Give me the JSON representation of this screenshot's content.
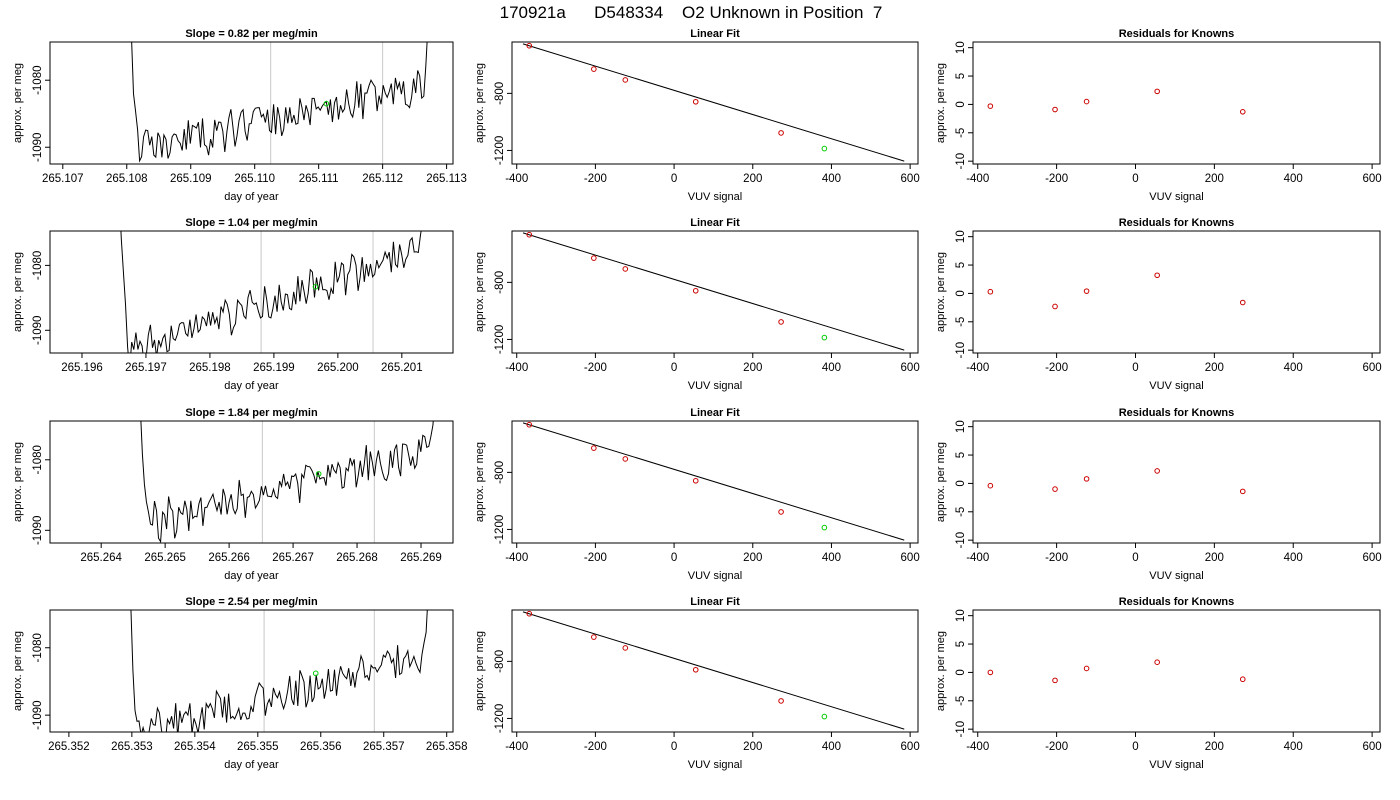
{
  "page": {
    "title": "170921a      D548334    O2 Unknown in Position  7"
  },
  "colors": {
    "trace": "#000000",
    "vline": "#c8c8c8",
    "unknown_point": "#00cc00",
    "known_point": "#cc0000",
    "axis": "#000000"
  },
  "chart_data": [
    {
      "type": "line",
      "row": 0,
      "col": 0,
      "title": "Slope =  0.82  per meg/min",
      "xlabel": "day of year",
      "ylabel": "approx. per meg",
      "xlim": [
        265.1068,
        265.1131
      ],
      "ylim": [
        -1092.5,
        -1074.3
      ],
      "xticks": [
        265.107,
        265.108,
        265.109,
        265.11,
        265.111,
        265.112,
        265.113
      ],
      "xtick_labels": [
        "265.107",
        "265.108",
        "265.109",
        "265.110",
        "265.111",
        "265.112",
        "265.113"
      ],
      "yticks": [
        -1080,
        -1090
      ],
      "ytick_labels": [
        "-1080",
        "-1090"
      ],
      "trace": {
        "x_start": 265.10801,
        "x_end": 265.11277,
        "baseline_start": -1091,
        "baseline_end": -1080.5,
        "noise": 1.6,
        "seed": 11,
        "spike_left_to": -1060,
        "spike_right_to": -1060
      },
      "vlines": [
        265.11025,
        265.112
      ],
      "marker": {
        "x": 265.11112,
        "y": -1083.5
      }
    },
    {
      "type": "scatter",
      "row": 0,
      "col": 1,
      "title": "Linear Fit",
      "xlabel": "VUV signal",
      "ylabel": "approx. per meg",
      "xlim": [
        -412,
        620
      ],
      "ylim": [
        -1295,
        -440
      ],
      "xticks": [
        -400,
        -200,
        0,
        200,
        400,
        600
      ],
      "xtick_labels": [
        "-400",
        "-200",
        "0",
        "200",
        "400",
        "600"
      ],
      "yticks": [
        -800,
        -1200
      ],
      "ytick_labels": [
        "-800",
        "-1200"
      ],
      "fit_line": {
        "x": [
          -384,
          585
        ],
        "y": [
          -453,
          -1275
        ]
      },
      "knowns": {
        "x": [
          -368,
          -204,
          -124,
          55,
          272
        ],
        "y": [
          -466,
          -630,
          -706,
          -859,
          -1077
        ]
      },
      "unknown": {
        "x": 382,
        "y": -1187
      }
    },
    {
      "type": "scatter",
      "row": 0,
      "col": 2,
      "title": "Residuals for Knowns",
      "xlabel": "VUV signal",
      "ylabel": "approx. per meg",
      "xlim": [
        -412,
        620
      ],
      "ylim": [
        -10.5,
        11
      ],
      "xticks": [
        -400,
        -200,
        0,
        200,
        400,
        600
      ],
      "xtick_labels": [
        "-400",
        "-200",
        "0",
        "200",
        "400",
        "600"
      ],
      "yticks": [
        10,
        5,
        0,
        -5,
        -10
      ],
      "ytick_labels": [
        "10",
        "5",
        "0",
        "-5",
        "-10"
      ],
      "knowns": {
        "x": [
          -368,
          -204,
          -124,
          55,
          272
        ],
        "y": [
          -0.3,
          -0.9,
          0.5,
          2.3,
          -1.3
        ]
      }
    },
    {
      "type": "line",
      "row": 1,
      "col": 0,
      "title": "Slope =  1.04  per meg/min",
      "xlabel": "day of year",
      "ylabel": "approx. per meg",
      "xlim": [
        265.1955,
        265.2018
      ],
      "ylim": [
        -1093.5,
        -1074.7
      ],
      "xticks": [
        265.196,
        265.197,
        265.198,
        265.199,
        265.2,
        265.201
      ],
      "xtick_labels": [
        "265.196",
        "265.197",
        "265.198",
        "265.199",
        "265.200",
        "265.201"
      ],
      "yticks": [
        -1080,
        -1090
      ],
      "ytick_labels": [
        "-1080",
        "-1090"
      ],
      "trace": {
        "x_start": 265.19655,
        "x_end": 265.20142,
        "baseline_start": -1094,
        "baseline_end": -1077,
        "noise": 1.6,
        "seed": 23,
        "spike_left_to": -1060,
        "spike_right_to": -1060
      },
      "vlines": [
        265.1988,
        265.20055
      ],
      "marker": {
        "x": 265.19965,
        "y": -1083.3
      }
    },
    {
      "type": "scatter",
      "row": 1,
      "col": 1,
      "title": "Linear Fit",
      "xlabel": "VUV signal",
      "ylabel": "approx. per meg",
      "xlim": [
        -412,
        620
      ],
      "ylim": [
        -1295,
        -440
      ],
      "xticks": [
        -400,
        -200,
        0,
        200,
        400,
        600
      ],
      "xtick_labels": [
        "-400",
        "-200",
        "0",
        "200",
        "400",
        "600"
      ],
      "yticks": [
        -800,
        -1200
      ],
      "ytick_labels": [
        "-800",
        "-1200"
      ],
      "fit_line": {
        "x": [
          -384,
          585
        ],
        "y": [
          -453,
          -1275
        ]
      },
      "knowns": {
        "x": [
          -368,
          -204,
          -124,
          55,
          272
        ],
        "y": [
          -466,
          -630,
          -706,
          -859,
          -1077
        ]
      },
      "unknown": {
        "x": 382,
        "y": -1187
      }
    },
    {
      "type": "scatter",
      "row": 1,
      "col": 2,
      "title": "Residuals for Knowns",
      "xlabel": "VUV signal",
      "ylabel": "approx. per meg",
      "xlim": [
        -412,
        620
      ],
      "ylim": [
        -10.5,
        11
      ],
      "xticks": [
        -400,
        -200,
        0,
        200,
        400,
        600
      ],
      "xtick_labels": [
        "-400",
        "-200",
        "0",
        "200",
        "400",
        "600"
      ],
      "yticks": [
        10,
        5,
        0,
        -5,
        -10
      ],
      "ytick_labels": [
        "10",
        "5",
        "0",
        "-5",
        "-10"
      ],
      "knowns": {
        "x": [
          -368,
          -204,
          -124,
          55,
          272
        ],
        "y": [
          0.3,
          -2.3,
          0.4,
          3.2,
          -1.6
        ]
      }
    },
    {
      "type": "line",
      "row": 2,
      "col": 0,
      "title": "Slope =  1.84  per meg/min",
      "xlabel": "day of year",
      "ylabel": "approx. per meg",
      "xlim": [
        265.2632,
        265.2695
      ],
      "ylim": [
        -1091.8,
        -1074.5
      ],
      "xticks": [
        265.264,
        265.265,
        265.266,
        265.267,
        265.268,
        265.269
      ],
      "xtick_labels": [
        "265.264",
        "265.265",
        "265.266",
        "265.267",
        "265.268",
        "265.269"
      ],
      "yticks": [
        -1080,
        -1090
      ],
      "ytick_labels": [
        "-1080",
        "-1090"
      ],
      "trace": {
        "x_start": 265.26455,
        "x_end": 265.26928,
        "baseline_start": -1089.5,
        "baseline_end": -1078,
        "noise": 1.5,
        "seed": 37,
        "spike_left_to": -1060,
        "spike_right_to": -1060
      },
      "vlines": [
        265.26652,
        265.26827
      ],
      "marker": {
        "x": 265.2674,
        "y": -1082
      }
    },
    {
      "type": "scatter",
      "row": 2,
      "col": 1,
      "title": "Linear Fit",
      "xlabel": "VUV signal",
      "ylabel": "approx. per meg",
      "xlim": [
        -412,
        620
      ],
      "ylim": [
        -1295,
        -440
      ],
      "xticks": [
        -400,
        -200,
        0,
        200,
        400,
        600
      ],
      "xtick_labels": [
        "-400",
        "-200",
        "0",
        "200",
        "400",
        "600"
      ],
      "yticks": [
        -800,
        -1200
      ],
      "ytick_labels": [
        "-800",
        "-1200"
      ],
      "fit_line": {
        "x": [
          -384,
          585
        ],
        "y": [
          -453,
          -1275
        ]
      },
      "knowns": {
        "x": [
          -368,
          -204,
          -124,
          55,
          272
        ],
        "y": [
          -466,
          -630,
          -706,
          -859,
          -1077
        ]
      },
      "unknown": {
        "x": 382,
        "y": -1187
      }
    },
    {
      "type": "scatter",
      "row": 2,
      "col": 2,
      "title": "Residuals for Knowns",
      "xlabel": "VUV signal",
      "ylabel": "approx. per meg",
      "xlim": [
        -412,
        620
      ],
      "ylim": [
        -10.5,
        11
      ],
      "xticks": [
        -400,
        -200,
        0,
        200,
        400,
        600
      ],
      "xtick_labels": [
        "-400",
        "-200",
        "0",
        "200",
        "400",
        "600"
      ],
      "yticks": [
        10,
        5,
        0,
        -5,
        -10
      ],
      "ytick_labels": [
        "10",
        "5",
        "0",
        "-5",
        "-10"
      ],
      "knowns": {
        "x": [
          -368,
          -204,
          -124,
          55,
          272
        ],
        "y": [
          -0.4,
          -1.0,
          0.8,
          2.2,
          -1.4
        ]
      }
    },
    {
      "type": "line",
      "row": 3,
      "col": 0,
      "title": "Slope =  2.54  per meg/min",
      "xlabel": "day of year",
      "ylabel": "approx. per meg",
      "xlim": [
        265.3517,
        265.3581
      ],
      "ylim": [
        -1092.5,
        -1074.4
      ],
      "xticks": [
        265.352,
        265.353,
        265.354,
        265.355,
        265.356,
        265.357,
        265.358
      ],
      "xtick_labels": [
        "265.352",
        "265.353",
        "265.354",
        "265.355",
        "265.356",
        "265.357",
        "265.358"
      ],
      "yticks": [
        -1080,
        -1090
      ],
      "ytick_labels": [
        "-1080",
        "-1090"
      ],
      "trace": {
        "x_start": 265.35292,
        "x_end": 265.35777,
        "baseline_start": -1093,
        "baseline_end": -1081,
        "noise": 1.6,
        "seed": 53,
        "spike_left_to": -1060,
        "spike_right_to": -1060
      },
      "vlines": [
        265.3551,
        265.35685
      ],
      "marker": {
        "x": 265.35592,
        "y": -1083.8
      }
    },
    {
      "type": "scatter",
      "row": 3,
      "col": 1,
      "title": "Linear Fit",
      "xlabel": "VUV signal",
      "ylabel": "approx. per meg",
      "xlim": [
        -412,
        620
      ],
      "ylim": [
        -1295,
        -440
      ],
      "xticks": [
        -400,
        -200,
        0,
        200,
        400,
        600
      ],
      "xtick_labels": [
        "-400",
        "-200",
        "0",
        "200",
        "400",
        "600"
      ],
      "yticks": [
        -800,
        -1200
      ],
      "ytick_labels": [
        "-800",
        "-1200"
      ],
      "fit_line": {
        "x": [
          -384,
          585
        ],
        "y": [
          -453,
          -1275
        ]
      },
      "knowns": {
        "x": [
          -368,
          -204,
          -124,
          55,
          272
        ],
        "y": [
          -466,
          -630,
          -706,
          -859,
          -1077
        ]
      },
      "unknown": {
        "x": 382,
        "y": -1187
      }
    },
    {
      "type": "scatter",
      "row": 3,
      "col": 2,
      "title": "Residuals for Knowns",
      "xlabel": "VUV signal",
      "ylabel": "approx. per meg",
      "xlim": [
        -412,
        620
      ],
      "ylim": [
        -10.5,
        11
      ],
      "xticks": [
        -400,
        -200,
        0,
        200,
        400,
        600
      ],
      "xtick_labels": [
        "-400",
        "-200",
        "0",
        "200",
        "400",
        "600"
      ],
      "yticks": [
        10,
        5,
        0,
        -5,
        -10
      ],
      "ytick_labels": [
        "10",
        "5",
        "0",
        "-5",
        "-10"
      ],
      "knowns": {
        "x": [
          -368,
          -204,
          -124,
          55,
          272
        ],
        "y": [
          0.0,
          -1.4,
          0.7,
          1.8,
          -1.2
        ]
      }
    }
  ]
}
